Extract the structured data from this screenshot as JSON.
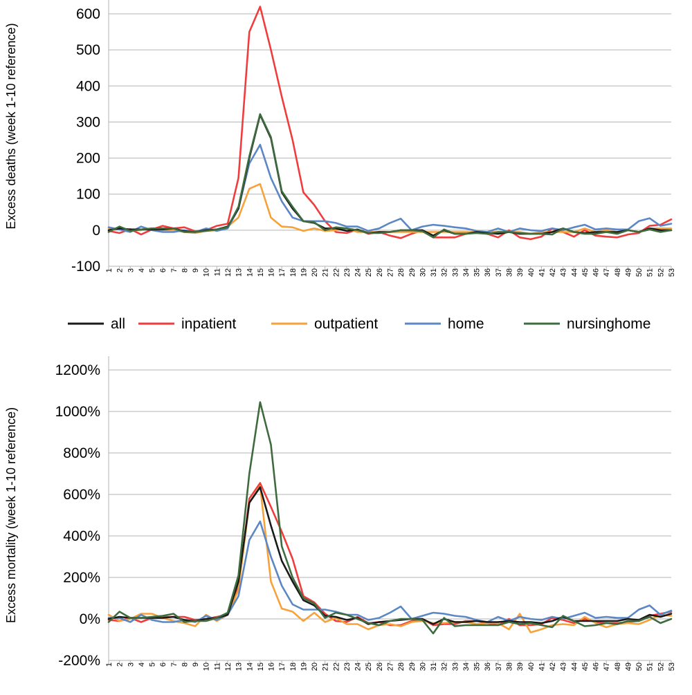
{
  "legend": [
    {
      "name": "all",
      "color": "#1a1a1a"
    },
    {
      "name": "inpatient",
      "color": "#f03c3c"
    },
    {
      "name": "outpatient",
      "color": "#f7a13a"
    },
    {
      "name": "home",
      "color": "#5b87c4"
    },
    {
      "name": "nursinghome",
      "color": "#3e6b3e"
    }
  ],
  "chart_data": [
    {
      "type": "line",
      "title": "",
      "xlabel": "",
      "ylabel": "Excess deaths (week 1-10 reference)",
      "ylim": [
        -100,
        600
      ],
      "yticks": [
        "-100",
        "0",
        "100",
        "200",
        "300",
        "400",
        "500",
        "600"
      ],
      "ytick_values": [
        -100,
        0,
        100,
        200,
        300,
        400,
        500,
        600
      ],
      "x": [
        1,
        2,
        3,
        4,
        5,
        6,
        7,
        8,
        9,
        10,
        11,
        12,
        13,
        14,
        15,
        16,
        17,
        18,
        19,
        20,
        21,
        22,
        23,
        24,
        25,
        26,
        27,
        28,
        29,
        30,
        31,
        32,
        33,
        34,
        35,
        36,
        37,
        38,
        39,
        40,
        41,
        42,
        43,
        44,
        45,
        46,
        47,
        48,
        49,
        50,
        51,
        52,
        53
      ],
      "grid": true,
      "legend": "bottom",
      "series": [
        {
          "name": "inpatient",
          "color": "#f03c3c",
          "values": [
            -2,
            -8,
            3,
            -12,
            2,
            12,
            5,
            8,
            -3,
            0,
            12,
            18,
            145,
            550,
            620,
            500,
            370,
            250,
            105,
            70,
            25,
            -5,
            -8,
            2,
            -10,
            -5,
            -15,
            -22,
            -10,
            0,
            -20,
            -20,
            -20,
            -10,
            -5,
            -10,
            -20,
            0,
            -20,
            -25,
            -18,
            5,
            -5,
            -18,
            0,
            -15,
            -18,
            -20,
            -12,
            -8,
            12,
            15,
            30
          ]
        },
        {
          "name": "outpatient",
          "color": "#f7a13a",
          "values": [
            5,
            5,
            0,
            0,
            5,
            0,
            0,
            -5,
            -8,
            -2,
            0,
            10,
            35,
            115,
            128,
            35,
            10,
            8,
            -2,
            5,
            -2,
            0,
            5,
            -5,
            -5,
            -5,
            -5,
            -5,
            -5,
            -5,
            -5,
            -5,
            -5,
            -5,
            -5,
            -5,
            -5,
            -5,
            -5,
            -10,
            -5,
            -5,
            -5,
            -5,
            5,
            -5,
            0,
            -5,
            0,
            -5,
            5,
            5,
            5
          ]
        },
        {
          "name": "home",
          "color": "#5b87c4",
          "values": [
            8,
            2,
            -5,
            10,
            0,
            -5,
            -5,
            0,
            -5,
            5,
            -2,
            5,
            60,
            185,
            237,
            145,
            80,
            35,
            25,
            25,
            25,
            20,
            10,
            10,
            -2,
            5,
            20,
            32,
            0,
            10,
            15,
            12,
            8,
            5,
            -2,
            -5,
            5,
            -5,
            5,
            0,
            -2,
            5,
            0,
            8,
            15,
            2,
            5,
            2,
            2,
            25,
            33,
            12,
            18
          ]
        },
        {
          "name": "all",
          "color": "#1a1a1a",
          "values": [
            0,
            5,
            2,
            2,
            2,
            2,
            5,
            -3,
            -5,
            0,
            2,
            10,
            60,
            200,
            320,
            255,
            105,
            60,
            25,
            20,
            5,
            5,
            -2,
            2,
            -8,
            -5,
            -5,
            0,
            0,
            0,
            -15,
            0,
            -10,
            -10,
            -5,
            -8,
            -10,
            -5,
            -10,
            -10,
            -10,
            -5,
            5,
            -5,
            -8,
            -5,
            -5,
            -5,
            0,
            -5,
            5,
            0,
            0
          ]
        },
        {
          "name": "nursinghome",
          "color": "#3e6b3e",
          "values": [
            -5,
            10,
            -2,
            2,
            5,
            5,
            5,
            -5,
            -5,
            -2,
            2,
            8,
            65,
            205,
            322,
            258,
            108,
            65,
            25,
            22,
            0,
            8,
            5,
            0,
            -8,
            -8,
            -5,
            0,
            0,
            -3,
            -20,
            2,
            -10,
            -10,
            -8,
            -10,
            -5,
            -5,
            -8,
            -10,
            -10,
            -12,
            5,
            -5,
            -10,
            -10,
            -5,
            -10,
            0,
            -5,
            2,
            -5,
            0
          ]
        }
      ]
    },
    {
      "type": "line",
      "title": "",
      "xlabel": "",
      "ylabel": "Excess mortality (week 1-10 reference)",
      "ylim": [
        -200,
        1200
      ],
      "yticks": [
        "-200%",
        "0%",
        "200%",
        "400%",
        "600%",
        "800%",
        "1000%",
        "1200%"
      ],
      "ytick_values": [
        -200,
        0,
        200,
        400,
        600,
        800,
        1000,
        1200
      ],
      "x": [
        1,
        2,
        3,
        4,
        5,
        6,
        7,
        8,
        9,
        10,
        11,
        12,
        13,
        14,
        15,
        16,
        17,
        18,
        19,
        20,
        21,
        22,
        23,
        24,
        25,
        26,
        27,
        28,
        29,
        30,
        31,
        32,
        33,
        34,
        35,
        36,
        37,
        38,
        39,
        40,
        41,
        42,
        43,
        44,
        45,
        46,
        47,
        48,
        49,
        50,
        51,
        52,
        53
      ],
      "grid": true,
      "series": [
        {
          "name": "inpatient",
          "color": "#f03c3c",
          "values": [
            -5,
            -10,
            5,
            -15,
            5,
            10,
            10,
            10,
            -5,
            0,
            10,
            20,
            150,
            580,
            655,
            540,
            420,
            290,
            110,
            80,
            25,
            -10,
            -15,
            10,
            -20,
            -15,
            -30,
            -30,
            -10,
            0,
            -30,
            -25,
            -25,
            -10,
            -10,
            -20,
            -30,
            0,
            -30,
            -30,
            -25,
            5,
            -5,
            -20,
            0,
            -15,
            -20,
            -20,
            -15,
            -10,
            15,
            25,
            35
          ]
        },
        {
          "name": "outpatient",
          "color": "#f7a13a",
          "values": [
            20,
            -10,
            0,
            25,
            25,
            5,
            -10,
            -20,
            -35,
            20,
            -10,
            20,
            140,
            560,
            640,
            180,
            50,
            35,
            -10,
            30,
            -15,
            5,
            -25,
            -25,
            -50,
            -30,
            -25,
            -35,
            -15,
            -10,
            -20,
            -20,
            -15,
            -15,
            -25,
            -20,
            -20,
            -50,
            25,
            -65,
            -50,
            -30,
            -25,
            -30,
            10,
            -20,
            -40,
            -25,
            -20,
            -25,
            -5,
            20,
            15
          ]
        },
        {
          "name": "home",
          "color": "#5b87c4",
          "values": [
            5,
            5,
            -15,
            20,
            -5,
            -15,
            -15,
            -5,
            -15,
            15,
            -5,
            20,
            110,
            380,
            470,
            300,
            160,
            70,
            45,
            45,
            45,
            35,
            20,
            20,
            -5,
            5,
            30,
            60,
            0,
            15,
            30,
            25,
            15,
            10,
            -5,
            -15,
            10,
            -10,
            10,
            0,
            -5,
            10,
            0,
            15,
            30,
            5,
            10,
            5,
            5,
            45,
            65,
            20,
            40
          ]
        },
        {
          "name": "all",
          "color": "#1a1a1a",
          "values": [
            0,
            10,
            5,
            5,
            5,
            5,
            10,
            -5,
            -10,
            0,
            5,
            20,
            180,
            560,
            635,
            450,
            280,
            180,
            90,
            65,
            15,
            10,
            -5,
            5,
            -25,
            -15,
            -10,
            -5,
            0,
            0,
            -25,
            0,
            -15,
            -15,
            -10,
            -15,
            -15,
            -10,
            -15,
            -15,
            -20,
            -10,
            10,
            -10,
            -10,
            -10,
            -10,
            -10,
            0,
            -5,
            20,
            10,
            25
          ]
        },
        {
          "name": "nursinghome",
          "color": "#3e6b3e",
          "values": [
            -15,
            35,
            5,
            5,
            10,
            15,
            25,
            -15,
            -10,
            -10,
            5,
            30,
            210,
            700,
            1045,
            840,
            350,
            200,
            100,
            75,
            5,
            30,
            20,
            0,
            -20,
            -30,
            -10,
            0,
            0,
            -5,
            -70,
            5,
            -35,
            -30,
            -30,
            -30,
            -30,
            -15,
            -25,
            -20,
            -30,
            -40,
            15,
            -10,
            -35,
            -30,
            -20,
            -25,
            -10,
            -10,
            10,
            -20,
            0
          ]
        }
      ]
    }
  ]
}
